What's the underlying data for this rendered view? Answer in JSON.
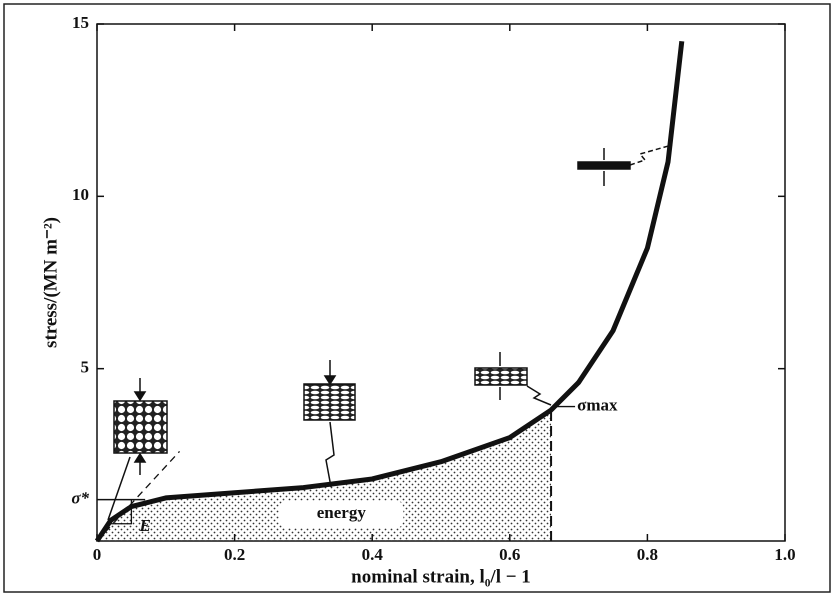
{
  "chart_data": {
    "type": "line",
    "xlabel": "nominal strain, l₀/l − 1",
    "ylabel": "stress/(MN m⁻²)",
    "x": [
      0,
      0.02,
      0.05,
      0.1,
      0.2,
      0.3,
      0.4,
      0.5,
      0.6,
      0.66,
      0.7,
      0.75,
      0.8,
      0.83,
      0.85
    ],
    "values": [
      0,
      0.6,
      1.0,
      1.25,
      1.4,
      1.55,
      1.8,
      2.3,
      3.0,
      3.8,
      4.6,
      6.1,
      8.5,
      11,
      14.5
    ],
    "color": "#111111",
    "xlim": [
      0,
      1
    ],
    "ylim": [
      0,
      15
    ],
    "xticks": [
      0,
      0.2,
      0.4,
      0.6,
      0.8,
      {
        "value": 1,
        "label": "1.0"
      }
    ],
    "yticks": [
      5,
      10,
      15
    ],
    "annotations": {
      "sigma_star": "σ*",
      "modulus": "E",
      "energy": "energy",
      "sigma_max": "σmax"
    },
    "plateau_stress": 1.2,
    "energy_strain_limit": 0.66
  }
}
